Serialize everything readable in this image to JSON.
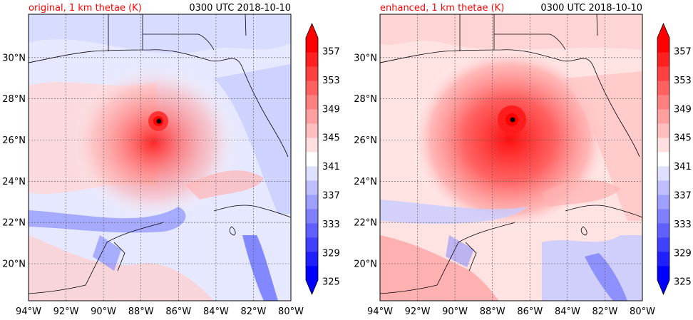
{
  "chart_data": [
    {
      "type": "heatmap",
      "title": "original, 1 km thetae (K)",
      "title_color": "#ff0000",
      "valid_time": "0300 UTC 2018-10-10",
      "xlabel": "",
      "ylabel": "",
      "x_ticks": [
        "94°W",
        "92°W",
        "90°W",
        "88°W",
        "86°W",
        "84°W",
        "82°W",
        "80°W"
      ],
      "y_ticks": [
        "20°N",
        "22°N",
        "24°N",
        "26°N",
        "28°N",
        "30°N"
      ],
      "xlim": [
        -94,
        -80
      ],
      "ylim": [
        18.1,
        32
      ],
      "grid": true,
      "storm_center": [
        -87.0,
        26.9
      ],
      "colorbar": {
        "ticks": [
          "325",
          "329",
          "333",
          "337",
          "341",
          "345",
          "349",
          "353",
          "357"
        ],
        "range": [
          325,
          359
        ],
        "extend": "both",
        "colormap": "bwr"
      }
    },
    {
      "type": "heatmap",
      "title": "enhanced, 1 km thetae (K)",
      "title_color": "#ff0000",
      "valid_time": "0300 UTC 2018-10-10",
      "xlabel": "",
      "ylabel": "",
      "x_ticks": [
        "94°W",
        "92°W",
        "90°W",
        "88°W",
        "86°W",
        "84°W",
        "82°W",
        "80°W"
      ],
      "y_ticks": [
        "20°N",
        "22°N",
        "24°N",
        "26°N",
        "28°N",
        "30°N"
      ],
      "xlim": [
        -94,
        -80
      ],
      "ylim": [
        18.1,
        32
      ],
      "grid": true,
      "storm_center": [
        -87.0,
        27.0
      ],
      "colorbar": {
        "ticks": [
          "325",
          "329",
          "333",
          "337",
          "341",
          "345",
          "349",
          "353",
          "357"
        ],
        "range": [
          325,
          359
        ],
        "extend": "both",
        "colormap": "bwr"
      }
    }
  ]
}
